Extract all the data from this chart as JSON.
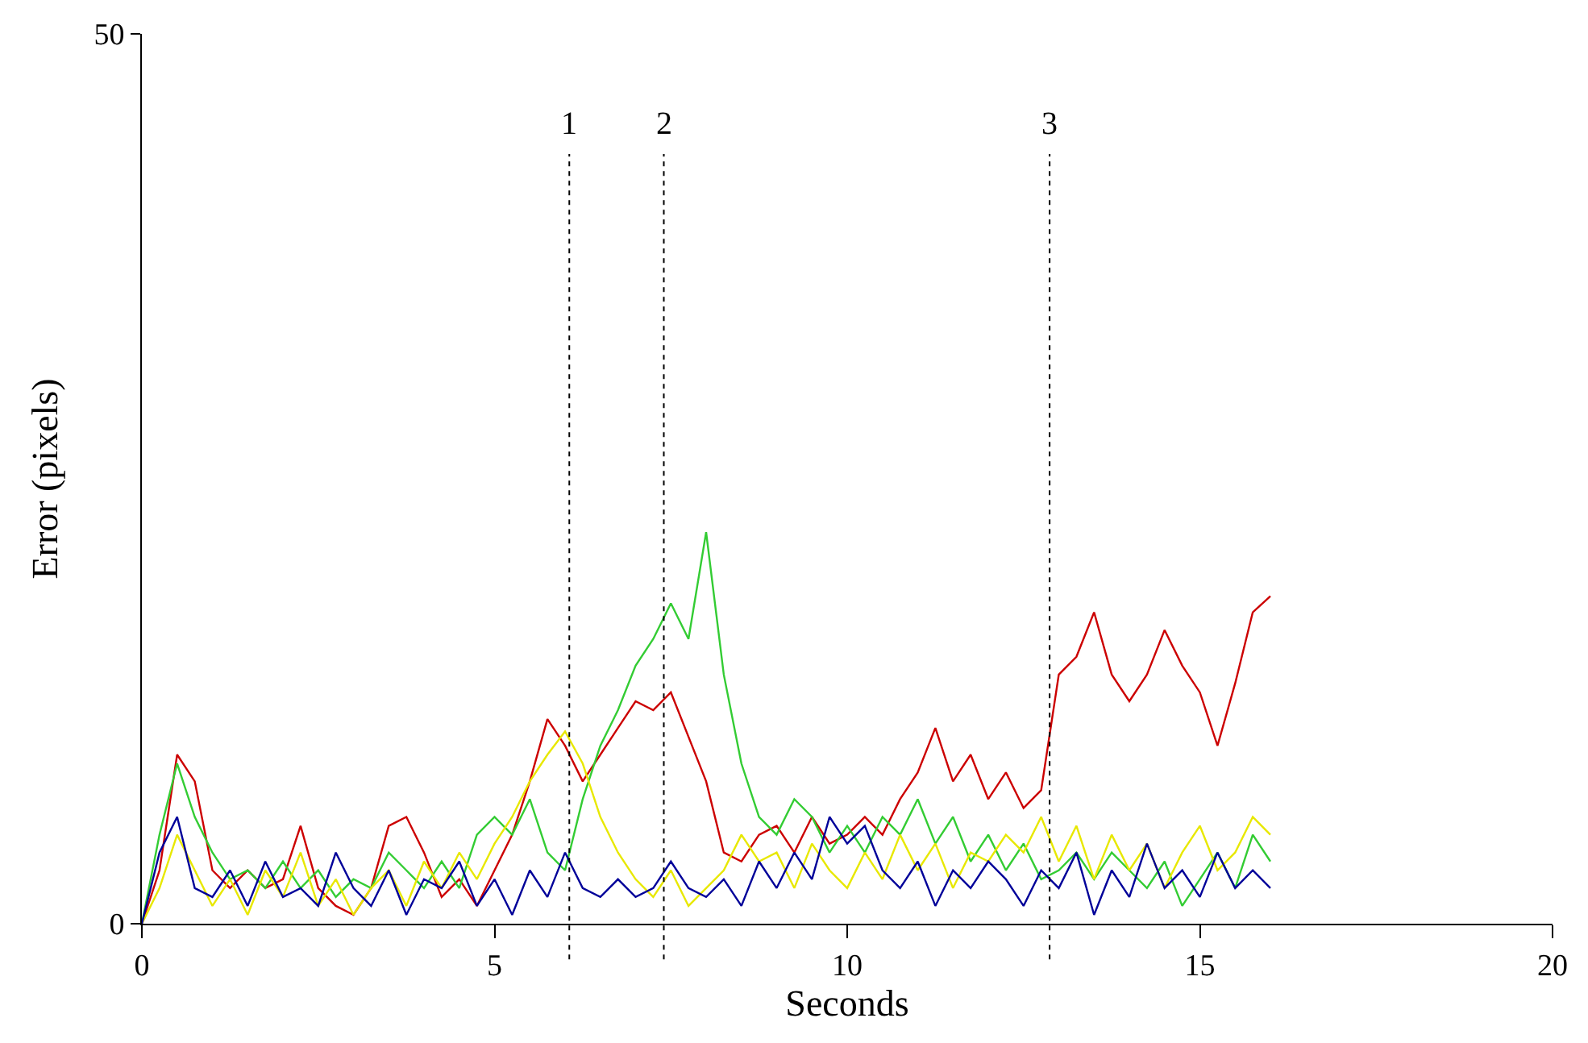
{
  "chart_data": {
    "type": "line",
    "xlabel": "Seconds",
    "ylabel": "Error (pixels)",
    "x": [
      0,
      0.25,
      0.5,
      0.75,
      1,
      1.25,
      1.5,
      1.75,
      2,
      2.25,
      2.5,
      2.75,
      3,
      3.25,
      3.5,
      3.75,
      4,
      4.25,
      4.5,
      4.75,
      5,
      5.25,
      5.5,
      5.75,
      6,
      6.25,
      6.5,
      6.75,
      7,
      7.25,
      7.5,
      7.75,
      8,
      8.25,
      8.5,
      8.75,
      9,
      9.25,
      9.5,
      9.75,
      10,
      10.25,
      10.5,
      10.75,
      11,
      11.25,
      11.5,
      11.75,
      12,
      12.25,
      12.5,
      12.75,
      13,
      13.25,
      13.5,
      13.75,
      14,
      14.25,
      14.5,
      14.75,
      15,
      15.25,
      15.5,
      15.75,
      16
    ],
    "series": [
      {
        "color": "#cc0000",
        "values": [
          0,
          3,
          9.5,
          8,
          3,
          2,
          3,
          2,
          2.5,
          5.5,
          2,
          1,
          0.5,
          2,
          5.5,
          6,
          4,
          1.5,
          2.5,
          1,
          3,
          5,
          8,
          11.5,
          10,
          8,
          9.5,
          11,
          12.5,
          12,
          13,
          10.5,
          8,
          4,
          3.5,
          5,
          5.5,
          4,
          6,
          4.5,
          5,
          6,
          5,
          7,
          8.5,
          11,
          8,
          9.5,
          7,
          8.5,
          6.5,
          7.5,
          14,
          15,
          17.5,
          14,
          12.5,
          14,
          16.5,
          14.5,
          13,
          10,
          13.5,
          17.5,
          18.4
        ]
      },
      {
        "color": "#33cc33",
        "values": [
          0,
          5,
          9,
          6,
          4,
          2.5,
          3,
          2,
          3.5,
          2,
          3,
          1.5,
          2.5,
          2,
          4,
          3,
          2,
          3.5,
          2,
          5,
          6,
          5,
          7,
          4,
          3,
          7,
          10,
          12,
          14.5,
          16,
          18,
          16,
          22,
          14,
          9,
          6,
          5,
          7,
          6,
          4,
          5.5,
          4,
          6,
          5,
          7,
          4.5,
          6,
          3.5,
          5,
          3,
          4.5,
          2.5,
          3,
          4,
          2.5,
          4,
          3,
          2,
          3.5,
          1,
          2.5,
          4,
          2,
          5,
          3.5
        ]
      },
      {
        "color": "#e8e800",
        "values": [
          0,
          2,
          5,
          3,
          1,
          2.5,
          0.5,
          3,
          1.5,
          4,
          1,
          2.5,
          0.5,
          2,
          3,
          1,
          3.5,
          2,
          4,
          2.5,
          4.5,
          6,
          8,
          9.5,
          10.8,
          9,
          6,
          4,
          2.5,
          1.5,
          3,
          1,
          2,
          3,
          5,
          3.5,
          4,
          2,
          4.5,
          3,
          2,
          4,
          2.5,
          5,
          3,
          4.5,
          2,
          4,
          3.5,
          5,
          4,
          6,
          3.5,
          5.5,
          2.5,
          5,
          3,
          4.5,
          2,
          4,
          5.5,
          3,
          4,
          6,
          5
        ]
      },
      {
        "color": "#000099",
        "values": [
          0,
          4,
          6,
          2,
          1.5,
          3,
          1,
          3.5,
          1.5,
          2,
          1,
          4,
          2,
          1,
          3,
          0.5,
          2.5,
          2,
          3.5,
          1,
          2.5,
          0.5,
          3,
          1.5,
          4,
          2,
          1.5,
          2.5,
          1.5,
          2,
          3.5,
          2,
          1.5,
          2.5,
          1,
          3.5,
          2,
          4,
          2.5,
          6,
          4.5,
          5.5,
          3,
          2,
          3.5,
          1,
          3,
          2,
          3.5,
          2.5,
          1,
          3,
          2,
          4,
          0.5,
          3,
          1.5,
          4.5,
          2,
          3,
          1.5,
          4,
          2,
          3,
          2
        ]
      }
    ],
    "xlim": [
      0,
      20
    ],
    "xticks": [
      0,
      5,
      10,
      15,
      20
    ],
    "ylim": [
      0,
      50
    ],
    "yticks": [
      0,
      50
    ],
    "ref_lines": [
      {
        "axis": "x",
        "value": 6.06,
        "line_style": "dotted",
        "color": "#000000"
      },
      {
        "axis": "x",
        "value": 7.4,
        "line_style": "dotted",
        "color": "#000000"
      },
      {
        "axis": "x",
        "value": 12.87,
        "line_style": "dotted",
        "color": "#000000"
      }
    ],
    "annotations": [
      "1",
      "2",
      "3"
    ],
    "marker": "none",
    "line_style": "solid"
  }
}
